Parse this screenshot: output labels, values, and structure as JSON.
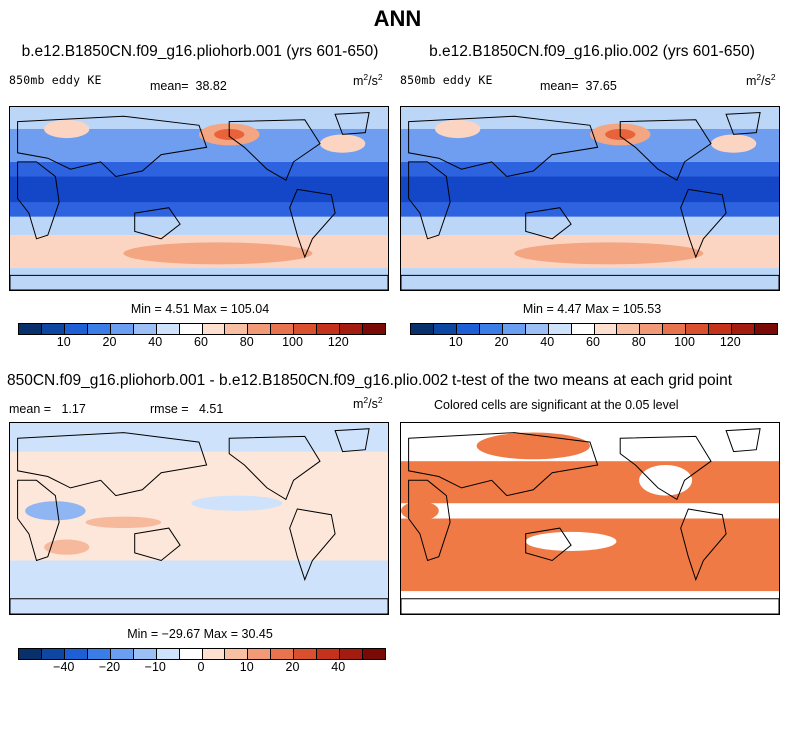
{
  "title": "ANN",
  "panels": {
    "p1": {
      "title": "b.e12.B1850CN.f09_g16.pliohorb.001 (yrs 601-650)",
      "variable": "850mb eddy KE",
      "mean_label": "mean=",
      "mean_value": "38.82",
      "units_base": "m",
      "units_exp1": "2",
      "units_mid": "/s",
      "units_exp2": "2",
      "stats": "Min =   4.51 Max = 105.04"
    },
    "p2": {
      "title": "b.e12.B1850CN.f09_g16.plio.002 (yrs 601-650)",
      "variable": "850mb eddy KE",
      "mean_label": "mean=",
      "mean_value": "37.65",
      "units_base": "m",
      "units_exp1": "2",
      "units_mid": "/s",
      "units_exp2": "2",
      "stats": "Min =   4.47 Max = 105.53"
    },
    "p3": {
      "title": "850CN.f09_g16.pliohorb.001 - b.e12.B1850CN.f09_g16.plio.002",
      "mean_label": "mean =",
      "mean_value": "1.17",
      "rmse_label": "rmse =",
      "rmse_value": "4.51",
      "units_base": "m",
      "units_exp1": "2",
      "units_mid": "/s",
      "units_exp2": "2",
      "stats": "Min = −29.67 Max =  30.45"
    },
    "p4": {
      "title": "t-test of the two means at each grid point",
      "subtitle": "Colored cells are significant at the 0.05 level"
    }
  },
  "colorbar_abs": {
    "labels": [
      "10",
      "20",
      "40",
      "60",
      "80",
      "100",
      "120"
    ],
    "colors": [
      "#08306b",
      "#0d47a1",
      "#1f5fd6",
      "#3b7de6",
      "#6a9ef0",
      "#9cc0f5",
      "#cfe2fb",
      "#ffffff",
      "#fde0d0",
      "#f9bfa3",
      "#f29a78",
      "#e8734f",
      "#d9502f",
      "#c4321b",
      "#a31c0f",
      "#7a0a05"
    ]
  },
  "colorbar_diff": {
    "labels": [
      "−40",
      "−20",
      "−10",
      "0",
      "10",
      "20",
      "40"
    ],
    "colors": [
      "#08306b",
      "#0d47a1",
      "#1f5fd6",
      "#3b7de6",
      "#6a9ef0",
      "#9cc0f5",
      "#cfe2fb",
      "#ffffff",
      "#fde0d0",
      "#f9bfa3",
      "#f29a78",
      "#e8734f",
      "#d9502f",
      "#c4321b",
      "#a31c0f",
      "#7a0a05"
    ]
  },
  "map_colors": {
    "abs_deep": "#1447c7",
    "abs_mid": "#2e63e0",
    "abs_light": "#6f9ef0",
    "abs_pale": "#bcd6f8",
    "abs_warm1": "#fbd5c1",
    "abs_warm2": "#f4a582",
    "abs_warm3": "#e8623a",
    "diff_neg": "#cfe2fb",
    "diff_pos": "#fde7da",
    "diff_negmid": "#8fb6f3",
    "diff_posmid": "#f6b99b",
    "ttest": "#f07a45",
    "land": "#ffffff",
    "coast": "#000000"
  }
}
